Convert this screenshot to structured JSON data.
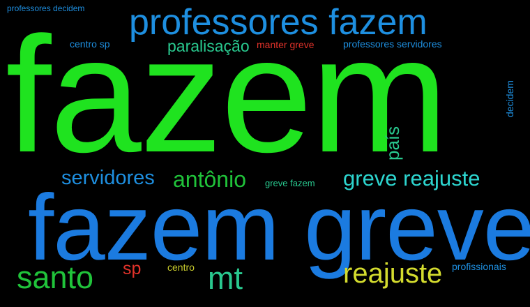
{
  "word_cloud": {
    "colors": {
      "background": "#000000",
      "green": "#1fe31f",
      "blue": "#1e8fe0",
      "deep_blue": "#1b7be0",
      "teal": "#29c98f",
      "cyan": "#2dd5cf",
      "red": "#e0322a",
      "yellow": "#d4dc2e"
    },
    "words": {
      "fazem": "fazem",
      "fazem_greve": "fazem greve",
      "professores_fazem": "professores fazem",
      "paralisacao": "paralisação",
      "manter_greve": "manter greve",
      "professores_servidores": "professores servidores",
      "professores_decidem": "professores decidem",
      "centro_sp": "centro sp",
      "servidores": "servidores",
      "antonio": "antônio",
      "greve_fazem": "greve fazem",
      "greve_reajuste": "greve reajuste",
      "pais": "país",
      "decidem": "decidem",
      "santo": "santo",
      "sp": "sp",
      "centro": "centro",
      "mt": "mt",
      "reajuste": "reajuste",
      "profissionais": "profissionais"
    }
  }
}
